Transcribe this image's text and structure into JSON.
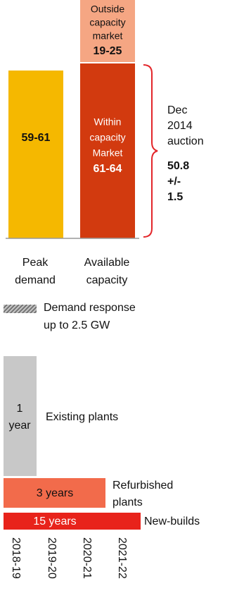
{
  "capacity": {
    "peak": {
      "value_label": "59-61",
      "label": [
        "Peak",
        "demand"
      ]
    },
    "within": {
      "label": [
        "Within",
        "capacity",
        "Market"
      ],
      "value_label": "61-64"
    },
    "outside": {
      "label": [
        "Outside",
        "capacity",
        "market"
      ],
      "value_label": "19-25"
    },
    "available_label": [
      "Available",
      "capacity"
    ],
    "auction": {
      "label": [
        "Dec",
        "2014",
        "auction"
      ],
      "value_label": [
        "50.8",
        "+/-",
        "1.5"
      ]
    }
  },
  "demand_response": [
    "Demand response",
    "up to 2.5 GW"
  ],
  "timeline": {
    "existing": {
      "duration": [
        "1",
        "year"
      ],
      "label": "Existing plants"
    },
    "refurbished": {
      "duration": "3 years",
      "label": [
        "Refurbished",
        "plants"
      ]
    },
    "new_builds": {
      "duration": "15 years",
      "label": "New-builds"
    },
    "years": [
      "2018-19",
      "2019-20",
      "2020-21",
      "2021-22"
    ]
  }
}
